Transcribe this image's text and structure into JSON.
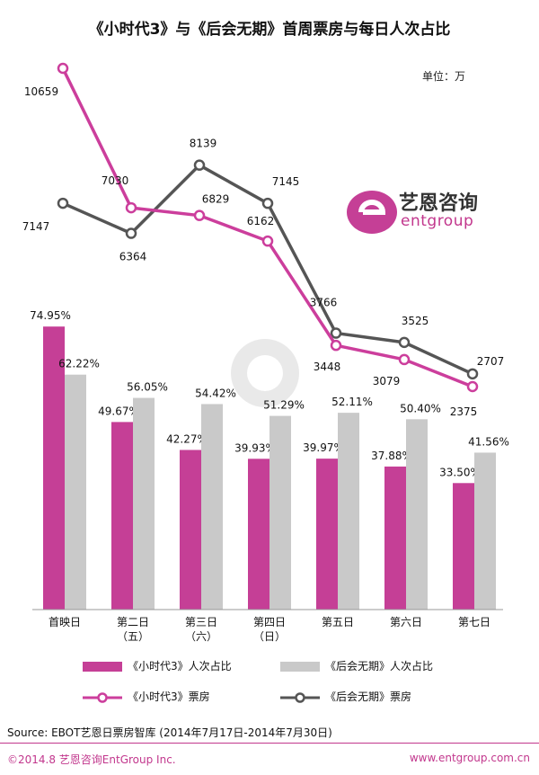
{
  "title": "《小时代3》与《后会无期》首周票房与每日人次占比",
  "unit": "单位：万",
  "logo": {
    "text": "艺恩咨询",
    "sub": "entgroup"
  },
  "source": "Source: EBOT艺恩日票房智库 (2014年7月17日-2014年7月30日)",
  "footer": {
    "left": "©2014.8 艺恩咨询EntGroup Inc.",
    "right": "www.entgroup.com.cn"
  },
  "colors": {
    "pink": "#c53f96",
    "pink_line": "#cc3e9c",
    "gray": "#c9c9c9",
    "dark_line": "#555555"
  },
  "chart_data": {
    "type": "bar+line",
    "categories": [
      "首映日",
      "第二日\n（五）",
      "第三日\n（六）",
      "第四日\n（日）",
      "第五日",
      "第六日",
      "第七日"
    ],
    "bar_series": [
      {
        "name": "《小时代3》人次占比",
        "values": [
          74.95,
          49.67,
          42.27,
          39.93,
          39.97,
          37.88,
          33.5
        ],
        "labels": [
          "74.95%",
          "49.67%",
          "42.27%",
          "39.93%",
          "39.97%",
          "37.88%",
          "33.50%"
        ]
      },
      {
        "name": "《后会无期》人次占比",
        "values": [
          62.22,
          56.05,
          54.42,
          51.29,
          52.11,
          50.4,
          41.56
        ],
        "labels": [
          "62.22%",
          "56.05%",
          "54.42%",
          "51.29%",
          "52.11%",
          "50.40%",
          "41.56%"
        ]
      }
    ],
    "line_series": [
      {
        "name": "《小时代3》票房",
        "values": [
          10659,
          7030,
          6829,
          6162,
          3448,
          3079,
          2375
        ]
      },
      {
        "name": "《后会无期》票房",
        "values": [
          7147,
          6364,
          8139,
          7145,
          3766,
          3525,
          2707
        ]
      }
    ]
  }
}
